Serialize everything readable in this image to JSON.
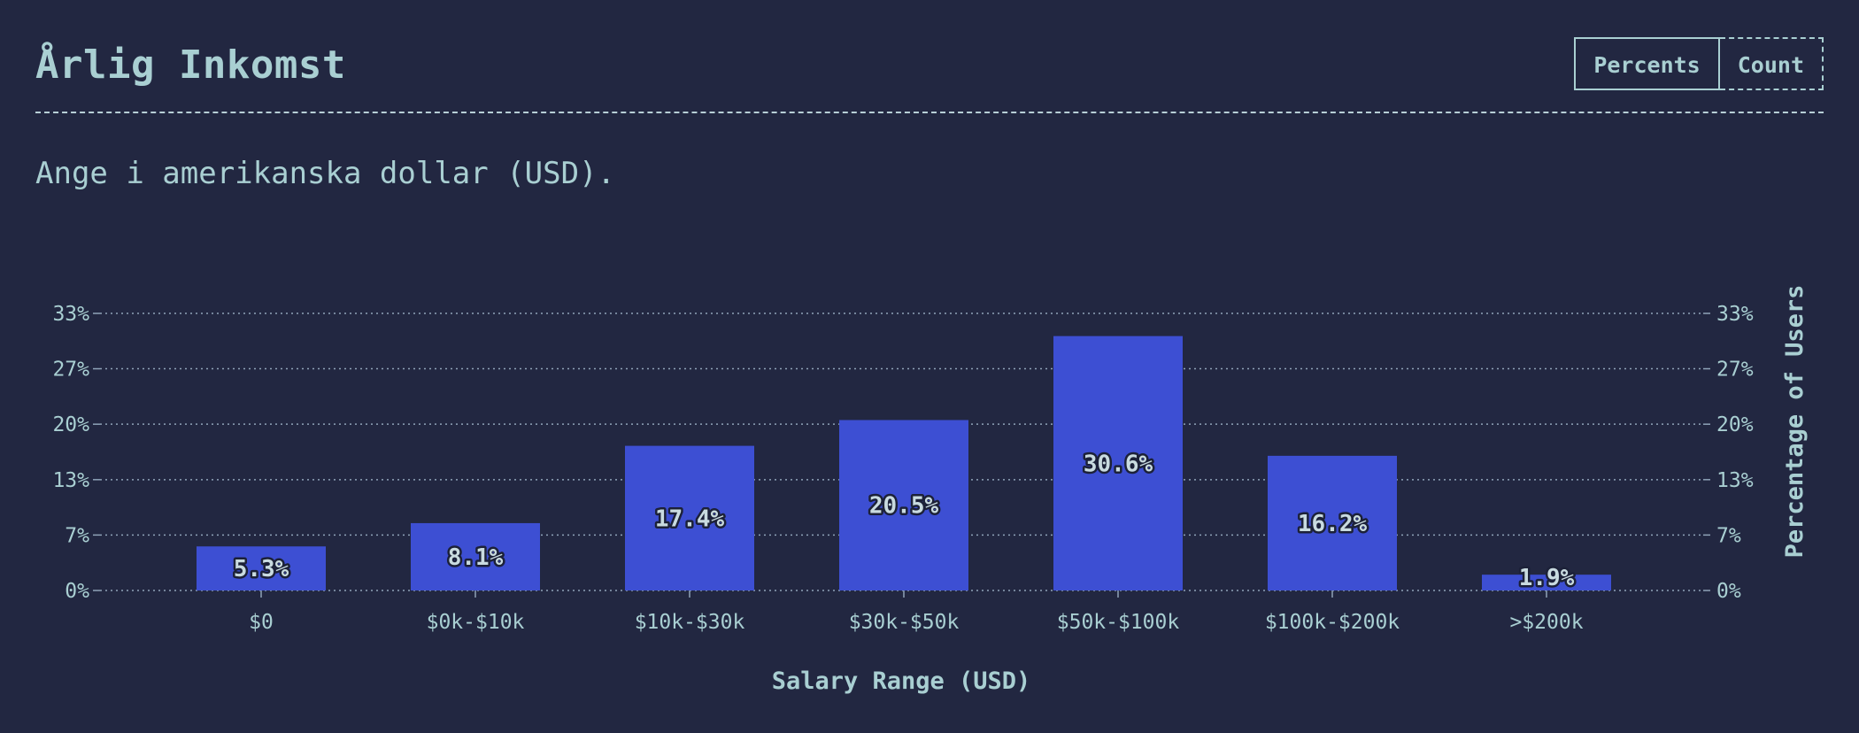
{
  "header": {
    "title": "Årlig Inkomst",
    "toggle": {
      "percents_label": "Percents",
      "count_label": "Count",
      "active": "percents"
    }
  },
  "subtitle": "Ange i amerikanska dollar (USD).",
  "colors": {
    "background": "#222741",
    "bar": "#3d4fd3",
    "text": "#a9cfd2",
    "grid": "#8fa3b8"
  },
  "chart_data": {
    "type": "bar",
    "categories": [
      "$0",
      "$0k-$10k",
      "$10k-$30k",
      "$30k-$50k",
      "$50k-$100k",
      "$100k-$200k",
      ">$200k"
    ],
    "values": [
      5.3,
      8.1,
      17.4,
      20.5,
      30.6,
      16.2,
      1.9
    ],
    "value_labels": [
      "5.3%",
      "8.1%",
      "17.4%",
      "20.5%",
      "30.6%",
      "16.2%",
      "1.9%"
    ],
    "xlabel": "Salary Range (USD)",
    "ylabel": "Percentage of Users",
    "yticks": [
      0,
      6.67,
      13.33,
      20,
      26.67,
      33.33
    ],
    "ytick_labels": [
      "0%",
      "7%",
      "13%",
      "20%",
      "27%",
      "33%"
    ],
    "ylim": [
      0,
      33.33
    ],
    "grid": true,
    "y_axis_both_sides": true
  }
}
